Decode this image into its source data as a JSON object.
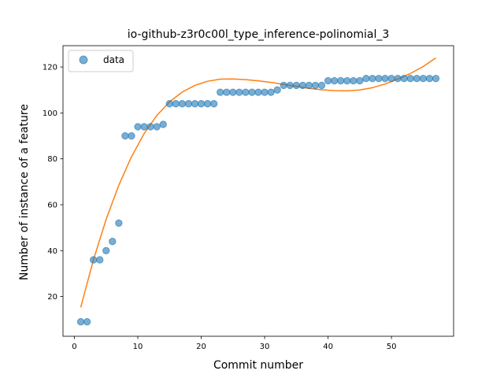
{
  "chart_data": {
    "type": "scatter",
    "title": "io-github-z3r0c00l_type_inference-polinomial_3",
    "xlabel": "Commit number",
    "ylabel": "Number of instance of a feature",
    "xlim": [
      -1.8,
      59.8
    ],
    "ylim": [
      2.7,
      129.3
    ],
    "xticks": [
      0,
      10,
      20,
      30,
      40,
      50
    ],
    "yticks": [
      20,
      40,
      60,
      80,
      100,
      120
    ],
    "grid": false,
    "legend": {
      "placement": "top-left",
      "entries": [
        "data"
      ]
    },
    "series": [
      {
        "name": "data",
        "kind": "scatter",
        "color": "#1f77b4",
        "x": [
          1,
          2,
          3,
          4,
          5,
          6,
          7,
          8,
          9,
          10,
          11,
          12,
          13,
          14,
          15,
          16,
          17,
          18,
          19,
          20,
          21,
          22,
          23,
          24,
          25,
          26,
          27,
          28,
          29,
          30,
          31,
          32,
          33,
          34,
          35,
          36,
          37,
          38,
          39,
          40,
          41,
          42,
          43,
          44,
          45,
          46,
          47,
          48,
          49,
          50,
          51,
          52,
          53,
          54,
          55,
          56,
          57
        ],
        "y": [
          9,
          9,
          36,
          36,
          40,
          44,
          52,
          90,
          90,
          94,
          94,
          94,
          94,
          95,
          104,
          104,
          104,
          104,
          104,
          104,
          104,
          104,
          109,
          109,
          109,
          109,
          109,
          109,
          109,
          109,
          109,
          110,
          112,
          112,
          112,
          112,
          112,
          112,
          112,
          114,
          114,
          114,
          114,
          114,
          114,
          115,
          115,
          115,
          115,
          115,
          115,
          115,
          115,
          115,
          115,
          115,
          115
        ]
      },
      {
        "kind": "line",
        "color": "#ff7f0e",
        "x": [
          1,
          3,
          5,
          7,
          9,
          11,
          13,
          15,
          17,
          19,
          21,
          23,
          25,
          27,
          29,
          31,
          33,
          35,
          37,
          39,
          41,
          43,
          45,
          47,
          49,
          51,
          53,
          55,
          57
        ],
        "y": [
          15.3,
          36.0,
          53.6,
          68.5,
          80.9,
          91.0,
          98.9,
          104.8,
          109.1,
          112.0,
          113.8,
          114.7,
          114.8,
          114.5,
          114.0,
          113.3,
          112.4,
          111.6,
          110.7,
          110.1,
          109.7,
          109.6,
          110.0,
          111.0,
          112.6,
          114.8,
          117.2,
          120.2,
          124.0
        ]
      }
    ]
  }
}
